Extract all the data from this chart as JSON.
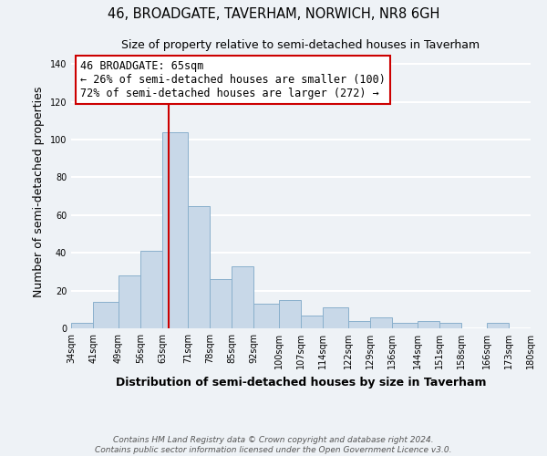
{
  "title": "46, BROADGATE, TAVERHAM, NORWICH, NR8 6GH",
  "subtitle": "Size of property relative to semi-detached houses in Taverham",
  "xlabel": "Distribution of semi-detached houses by size in Taverham",
  "ylabel": "Number of semi-detached properties",
  "bin_labels": [
    "34sqm",
    "41sqm",
    "49sqm",
    "56sqm",
    "63sqm",
    "71sqm",
    "78sqm",
    "85sqm",
    "92sqm",
    "100sqm",
    "107sqm",
    "114sqm",
    "122sqm",
    "129sqm",
    "136sqm",
    "144sqm",
    "151sqm",
    "158sqm",
    "166sqm",
    "173sqm",
    "180sqm"
  ],
  "bin_edges": [
    34,
    41,
    49,
    56,
    63,
    71,
    78,
    85,
    92,
    100,
    107,
    114,
    122,
    129,
    136,
    144,
    151,
    158,
    166,
    173,
    180
  ],
  "bar_heights": [
    3,
    14,
    28,
    41,
    104,
    65,
    26,
    33,
    13,
    15,
    7,
    11,
    4,
    6,
    3,
    4,
    3,
    0,
    3,
    0
  ],
  "bar_color": "#c8d8e8",
  "bar_edge_color": "#8ab0cc",
  "ylim": [
    0,
    145
  ],
  "yticks": [
    0,
    20,
    40,
    60,
    80,
    100,
    120,
    140
  ],
  "property_size": 65,
  "property_label": "46 BROADGATE: 65sqm",
  "pct_smaller": 26,
  "pct_larger": 72,
  "n_smaller": 100,
  "n_larger": 272,
  "vline_color": "#cc0000",
  "annotation_box_edge": "#cc0000",
  "footer_line1": "Contains HM Land Registry data © Crown copyright and database right 2024.",
  "footer_line2": "Contains public sector information licensed under the Open Government Licence v3.0.",
  "background_color": "#eef2f6",
  "grid_color": "#ffffff",
  "title_fontsize": 10.5,
  "subtitle_fontsize": 9,
  "axis_label_fontsize": 9,
  "tick_fontsize": 7,
  "footer_fontsize": 6.5,
  "annotation_fontsize": 8.5
}
